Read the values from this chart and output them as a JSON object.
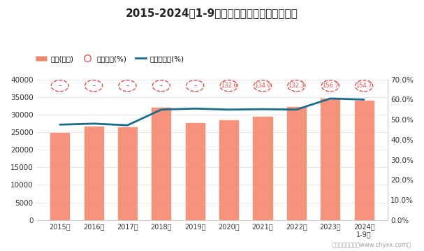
{
  "title": "2015-2024年1-9月河南省工业企业负债统计图",
  "years": [
    "2015年",
    "2016年",
    "2017年",
    "2018年",
    "2019年",
    "2020年",
    "2021年",
    "2022年",
    "2023年",
    "2024年\n1-9月"
  ],
  "liabilities": [
    25000,
    26800,
    26600,
    32200,
    27800,
    28500,
    29500,
    32300,
    34800,
    34200
  ],
  "equity_ratio": [
    null,
    null,
    null,
    null,
    null,
    132.6,
    134.0,
    132.3,
    156.7,
    154.7
  ],
  "asset_liability_rate": [
    47.5,
    48.0,
    47.2,
    55.0,
    55.5,
    55.0,
    55.2,
    55.0,
    60.5,
    60.0
  ],
  "left_yticks": [
    0,
    5000,
    10000,
    15000,
    20000,
    25000,
    30000,
    35000,
    40000
  ],
  "right_yticklabels": [
    "0.0%",
    "10.0%",
    "20.0%",
    "30.0%",
    "40.0%",
    "50.0%",
    "60.0%",
    "70.0%"
  ],
  "bar_color": "#F4846A",
  "circle_edge_color": "#E05050",
  "line_color": "#1B6B8A",
  "legend_label_bar": "负债(亿元)",
  "legend_label_circle": "产权比率(%)",
  "legend_label_line": "资产负债率(%)",
  "bg_color": "#FFFFFF",
  "watermark": "制图：智研咋询（www.chyxx.com）"
}
